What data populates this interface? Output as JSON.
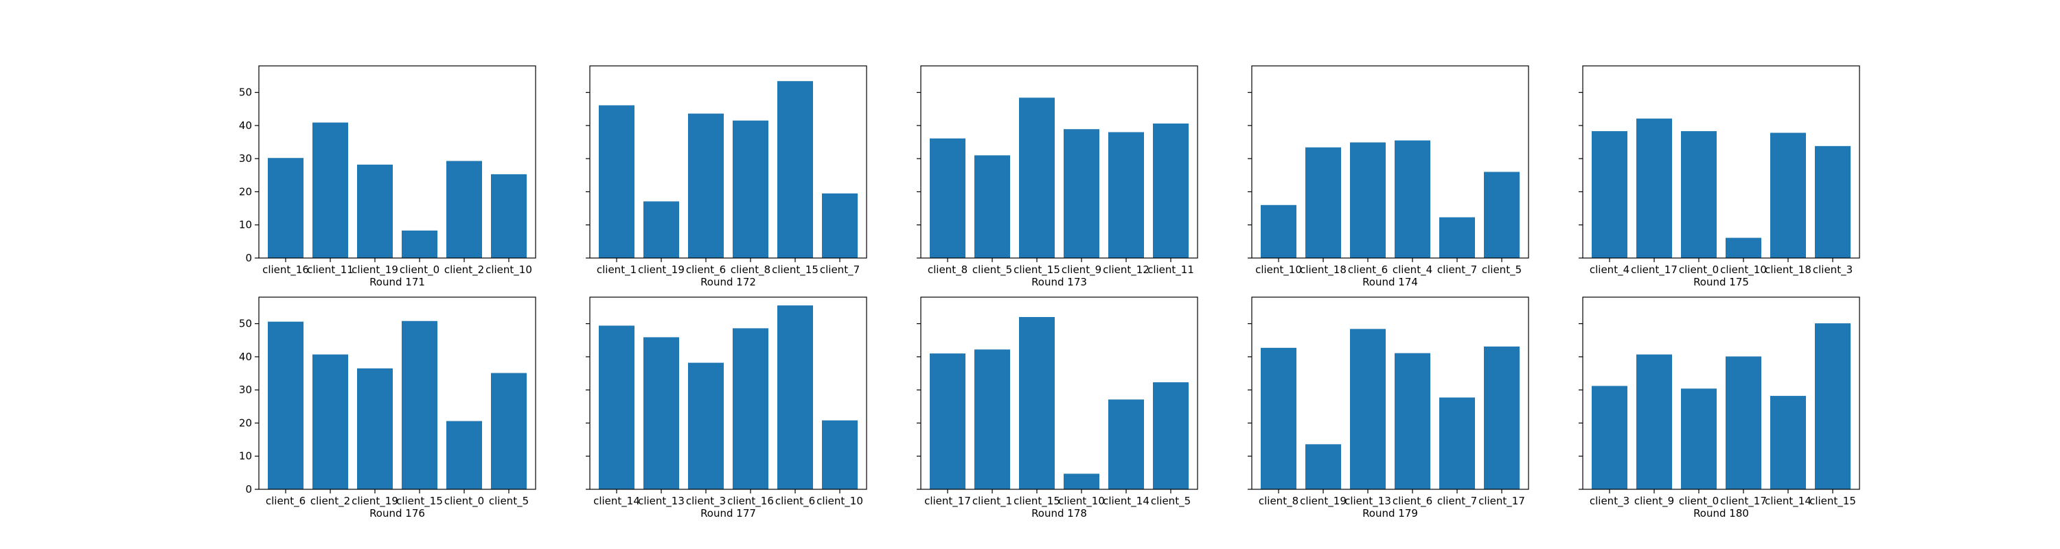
{
  "chart_data": [
    {
      "type": "bar",
      "xlabel": "Round 171",
      "categories": [
        "client_16",
        "client_11",
        "client_19",
        "client_0",
        "client_2",
        "client_10"
      ],
      "values": [
        30.2,
        40.9,
        28.2,
        8.3,
        29.3,
        25.3
      ],
      "ylim": [
        0,
        58.0
      ],
      "yticks": [
        0,
        10,
        20,
        30,
        40,
        50
      ]
    },
    {
      "type": "bar",
      "xlabel": "Round 172",
      "categories": [
        "client_1",
        "client_19",
        "client_6",
        "client_8",
        "client_15",
        "client_7"
      ],
      "values": [
        46.1,
        17.1,
        43.6,
        41.5,
        53.4,
        19.5
      ],
      "ylim": [
        0,
        58.0
      ],
      "yticks": [
        0,
        10,
        20,
        30,
        40,
        50
      ]
    },
    {
      "type": "bar",
      "xlabel": "Round 173",
      "categories": [
        "client_8",
        "client_5",
        "client_15",
        "client_9",
        "client_12",
        "client_11"
      ],
      "values": [
        36.1,
        31.0,
        48.4,
        38.9,
        38.0,
        40.6
      ],
      "ylim": [
        0,
        58.0
      ],
      "yticks": [
        0,
        10,
        20,
        30,
        40,
        50
      ]
    },
    {
      "type": "bar",
      "xlabel": "Round 174",
      "categories": [
        "client_10",
        "client_18",
        "client_6",
        "client_4",
        "client_7",
        "client_5"
      ],
      "values": [
        16.0,
        33.4,
        34.9,
        35.5,
        12.3,
        26.0
      ],
      "ylim": [
        0,
        58.0
      ],
      "yticks": [
        0,
        10,
        20,
        30,
        40,
        50
      ]
    },
    {
      "type": "bar",
      "xlabel": "Round 175",
      "categories": [
        "client_4",
        "client_17",
        "client_0",
        "client_10",
        "client_18",
        "client_3"
      ],
      "values": [
        38.3,
        42.1,
        38.3,
        6.1,
        37.8,
        33.8
      ],
      "ylim": [
        0,
        58.0
      ],
      "yticks": [
        0,
        10,
        20,
        30,
        40,
        50
      ]
    },
    {
      "type": "bar",
      "xlabel": "Round 176",
      "categories": [
        "client_6",
        "client_2",
        "client_19",
        "client_15",
        "client_0",
        "client_5"
      ],
      "values": [
        50.6,
        40.7,
        36.5,
        50.8,
        20.6,
        35.1
      ],
      "ylim": [
        0,
        58.0
      ],
      "yticks": [
        0,
        10,
        20,
        30,
        40,
        50
      ]
    },
    {
      "type": "bar",
      "xlabel": "Round 177",
      "categories": [
        "client_14",
        "client_13",
        "client_3",
        "client_16",
        "client_6",
        "client_10"
      ],
      "values": [
        49.4,
        45.9,
        38.2,
        48.6,
        55.5,
        20.8
      ],
      "ylim": [
        0,
        58.0
      ],
      "yticks": [
        0,
        10,
        20,
        30,
        40,
        50
      ]
    },
    {
      "type": "bar",
      "xlabel": "Round 178",
      "categories": [
        "client_17",
        "client_1",
        "client_15",
        "client_10",
        "client_14",
        "client_5"
      ],
      "values": [
        41.0,
        42.2,
        52.0,
        4.7,
        27.1,
        32.3
      ],
      "ylim": [
        0,
        58.0
      ],
      "yticks": [
        0,
        10,
        20,
        30,
        40,
        50
      ]
    },
    {
      "type": "bar",
      "xlabel": "Round 179",
      "categories": [
        "client_8",
        "client_19",
        "client_13",
        "client_6",
        "client_7",
        "client_17"
      ],
      "values": [
        42.7,
        13.6,
        48.4,
        41.1,
        27.7,
        43.1
      ],
      "ylim": [
        0,
        58.0
      ],
      "yticks": [
        0,
        10,
        20,
        30,
        40,
        50
      ]
    },
    {
      "type": "bar",
      "xlabel": "Round 180",
      "categories": [
        "client_3",
        "client_9",
        "client_0",
        "client_17",
        "client_14",
        "client_15"
      ],
      "values": [
        31.2,
        40.7,
        30.4,
        40.1,
        28.2,
        50.1
      ],
      "ylim": [
        0,
        58.0
      ],
      "yticks": [
        0,
        10,
        20,
        30,
        40,
        50
      ]
    }
  ],
  "colors": {
    "bar": "#1f77b4",
    "frame": "#000000",
    "text": "#000000"
  },
  "grid": false,
  "layout": "2 rows x 5 columns, shared y-axis across all subplots"
}
